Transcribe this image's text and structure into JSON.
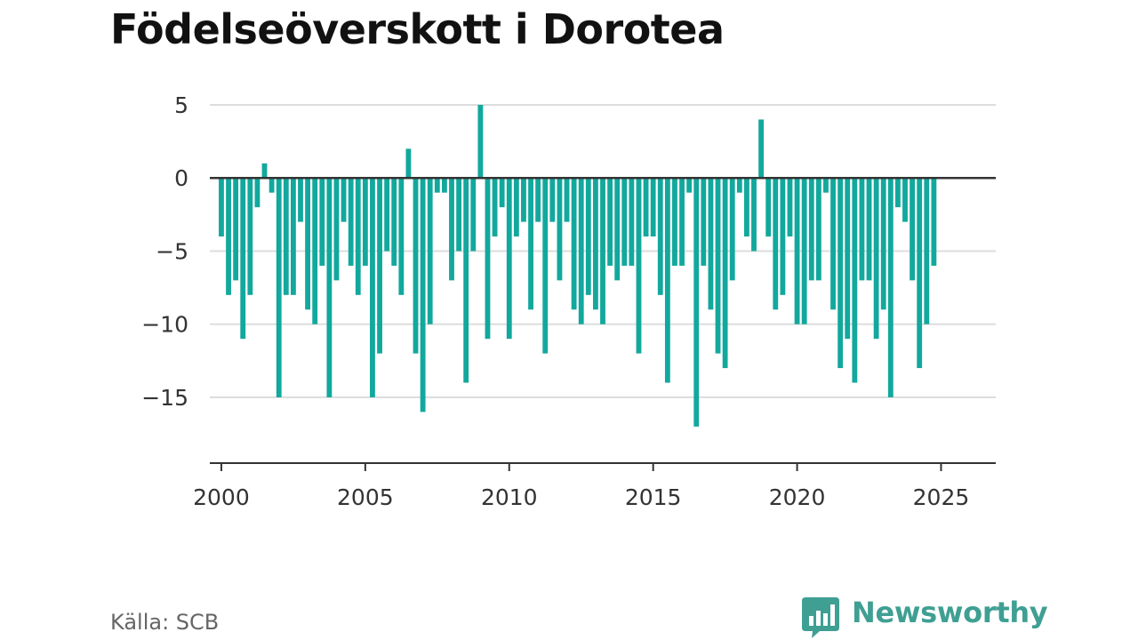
{
  "chart_data": {
    "type": "bar",
    "title": "Födelseöverskott i Dorotea",
    "xlabel": "",
    "ylabel": "",
    "start": 2000.0,
    "step": 0.25,
    "x_range": [
      1999.6,
      2026.9
    ],
    "xticks": [
      2000,
      2005,
      2010,
      2015,
      2020,
      2025
    ],
    "xtick_labels": [
      "2000",
      "2005",
      "2010",
      "2015",
      "2020",
      "2025"
    ],
    "ylim": [
      -19.5,
      5
    ],
    "yticks": [
      5,
      0,
      -5,
      -10,
      -15
    ],
    "ytick_labels": [
      "5",
      "0",
      "−5",
      "−10",
      "−15"
    ],
    "grid": true,
    "bar_color": "#12a89d",
    "values": [
      -4,
      -8,
      -7,
      -11,
      -8,
      -2,
      1,
      -1,
      -15,
      -8,
      -8,
      -3,
      -9,
      -10,
      -6,
      -15,
      -7,
      -3,
      -6,
      -8,
      -6,
      -15,
      -12,
      -5,
      -6,
      -8,
      2,
      -12,
      -16,
      -10,
      -1,
      -1,
      -7,
      -5,
      -14,
      -5,
      5,
      -11,
      -4,
      -2,
      -11,
      -4,
      -3,
      -9,
      -3,
      -12,
      -3,
      -7,
      -3,
      -9,
      -10,
      -8,
      -9,
      -10,
      -6,
      -7,
      -6,
      -6,
      -12,
      -4,
      -4,
      -8,
      -14,
      -6,
      -6,
      -1,
      -17,
      -6,
      -9,
      -12,
      -13,
      -7,
      -1,
      -4,
      -5,
      4,
      -4,
      -9,
      -8,
      -4,
      -10,
      -10,
      -7,
      -7,
      -1,
      -9,
      -13,
      -11,
      -14,
      -7,
      -7,
      -11,
      -9,
      -15,
      -2,
      -3,
      -7,
      -13,
      -10,
      -6
    ]
  },
  "footer": {
    "source": "Källa: SCB",
    "brand": "Newsworthy",
    "brand_color": "#3f9f93",
    "logo_icon": "bar-chart-icon"
  }
}
